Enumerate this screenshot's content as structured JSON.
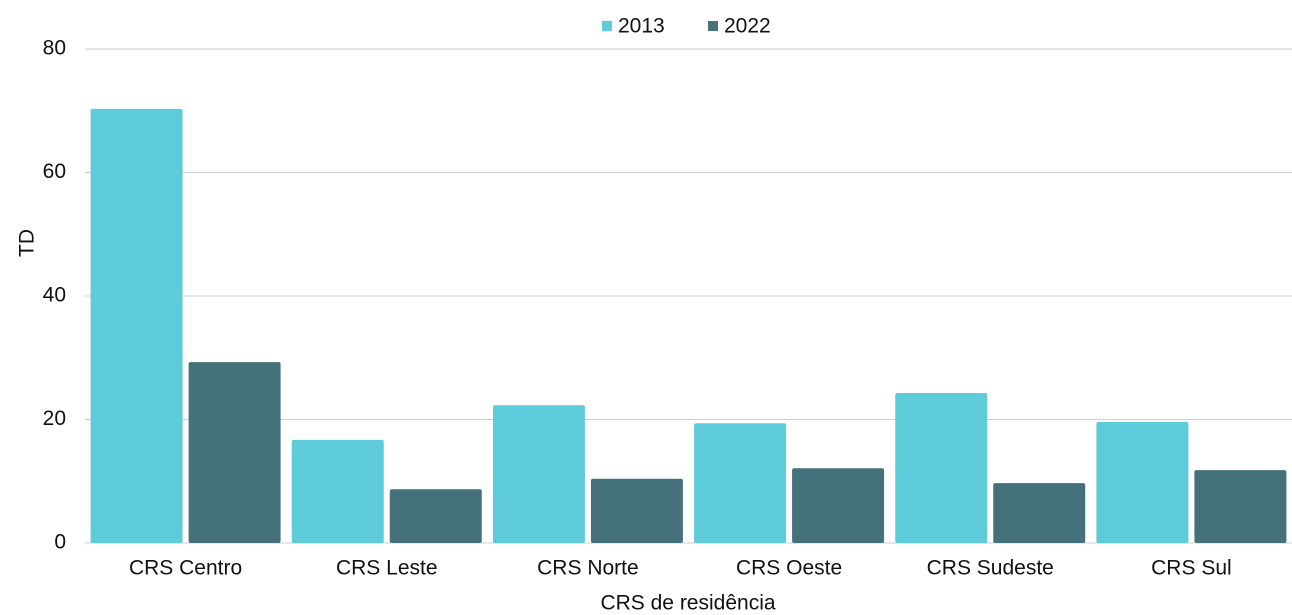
{
  "chart_data": {
    "type": "bar",
    "categories": [
      "CRS Centro",
      "CRS Leste",
      "CRS Norte",
      "CRS Oeste",
      "CRS Sudeste",
      "CRS Sul"
    ],
    "series": [
      {
        "name": "2013",
        "color": "#5ecbdb",
        "values": [
          70.3,
          16.7,
          22.3,
          19.4,
          24.3,
          19.6
        ]
      },
      {
        "name": "2022",
        "color": "#45717a",
        "values": [
          29.3,
          8.7,
          10.4,
          12.1,
          9.7,
          11.8
        ]
      }
    ],
    "xlabel": "CRS de residência",
    "ylabel": "TD",
    "ylim": [
      0,
      80
    ],
    "yticks": [
      0,
      20,
      40,
      60,
      80
    ],
    "grid": true,
    "legend": "top"
  }
}
